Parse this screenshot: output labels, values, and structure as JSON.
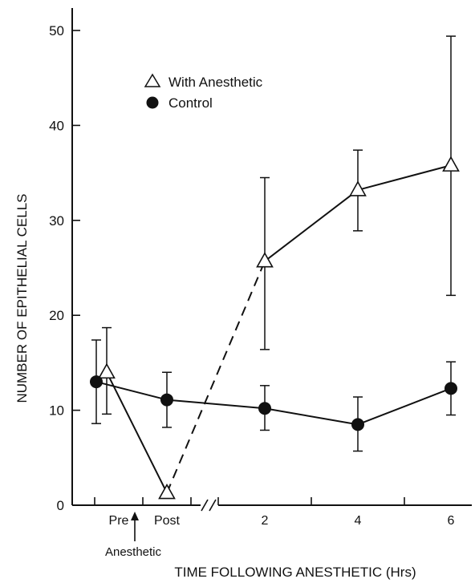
{
  "chart_data": {
    "type": "line",
    "title": "",
    "xlabel": "TIME FOLLOWING ANESTHETIC (Hrs)",
    "ylabel": "NUMBER OF EPITHELIAL CELLS",
    "ylim": [
      0,
      52
    ],
    "yticks": [
      0,
      10,
      20,
      30,
      40,
      50
    ],
    "categories": [
      "Pre",
      "Post",
      "2",
      "4",
      "6"
    ],
    "axis_break_between": [
      "Post",
      "2"
    ],
    "annotation": "Anesthetic",
    "grid": false,
    "legend_position": "top-left",
    "series": [
      {
        "name": "With Anesthetic",
        "marker": "open-triangle",
        "values": [
          14,
          1.3,
          25.7,
          33.2,
          35.8
        ],
        "err_low": [
          9.6,
          null,
          16.4,
          28.9,
          22.1
        ],
        "err_high": [
          18.7,
          null,
          34.5,
          37.4,
          49.4
        ],
        "dashed_segment": [
          "Post",
          "2"
        ]
      },
      {
        "name": "Control",
        "marker": "filled-circle",
        "values": [
          13,
          11.1,
          10.2,
          8.5,
          12.3
        ],
        "err_low": [
          8.6,
          8.2,
          7.9,
          5.7,
          9.5
        ],
        "err_high": [
          17.4,
          14,
          12.6,
          11.4,
          15.1
        ]
      }
    ]
  }
}
